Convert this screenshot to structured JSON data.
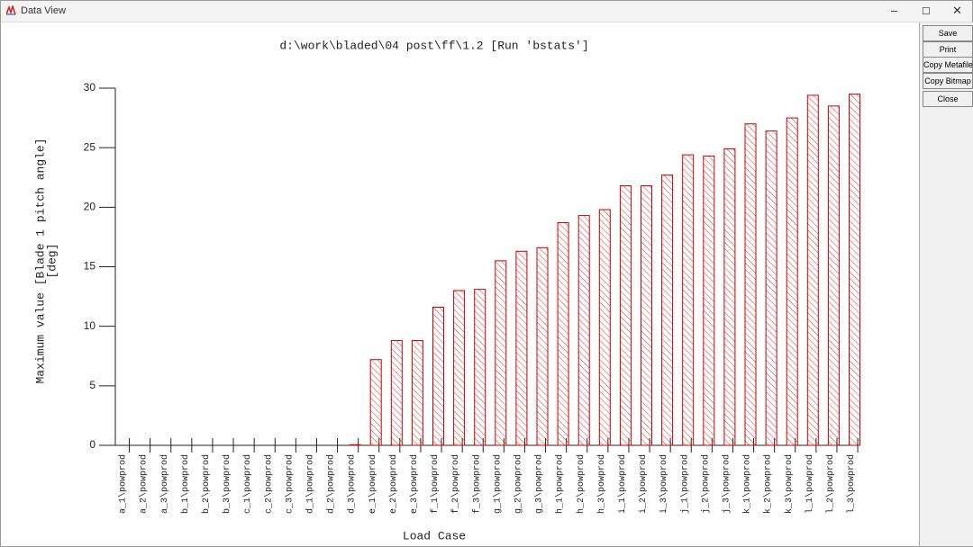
{
  "window": {
    "title": "Data View"
  },
  "buttons": [
    "Save",
    "Print",
    "Copy Metafile",
    "Copy Bitmap",
    "Close"
  ],
  "chart_data": {
    "type": "bar",
    "title": "d:\\work\\bladed\\04 post\\ff\\1.2 [Run 'bstats']",
    "ylabel": [
      "Maximum value [Blade 1 pitch angle]",
      "[deg]"
    ],
    "xlabel": "Load Case",
    "categories": [
      "a_1\\powprod",
      "a_2\\powprod",
      "a_3\\powprod",
      "b_1\\powprod",
      "b_2\\powprod",
      "b_3\\powprod",
      "c_1\\powprod",
      "c_2\\powprod",
      "c_3\\powprod",
      "d_1\\powprod",
      "d_2\\powprod",
      "d_3\\powprod",
      "e_1\\powprod",
      "e_2\\powprod",
      "e_3\\powprod",
      "f_1\\powprod",
      "f_2\\powprod",
      "f_3\\powprod",
      "g_1\\powprod",
      "g_2\\powprod",
      "g_3\\powprod",
      "h_1\\powprod",
      "h_2\\powprod",
      "h_3\\powprod",
      "i_1\\powprod",
      "i_2\\powprod",
      "i_3\\powprod",
      "j_1\\powprod",
      "j_2\\powprod",
      "j_3\\powprod",
      "k_1\\powprod",
      "k_2\\powprod",
      "k_3\\powprod",
      "l_1\\powprod",
      "l_2\\powprod",
      "l_3\\powprod"
    ],
    "values": [
      0,
      0,
      0,
      0,
      0,
      0,
      0,
      0,
      0,
      0,
      0,
      0.05,
      7.2,
      8.8,
      8.8,
      11.6,
      13.0,
      13.1,
      15.5,
      16.3,
      16.6,
      18.7,
      19.3,
      19.8,
      21.8,
      21.8,
      22.7,
      24.4,
      24.3,
      24.9,
      27.0,
      26.4,
      27.5,
      29.4,
      28.5,
      29.5
    ],
    "color": "#cc0000",
    "ylim": [
      0,
      30
    ],
    "yticks": [
      0,
      5,
      10,
      15,
      20,
      25,
      30
    ]
  }
}
